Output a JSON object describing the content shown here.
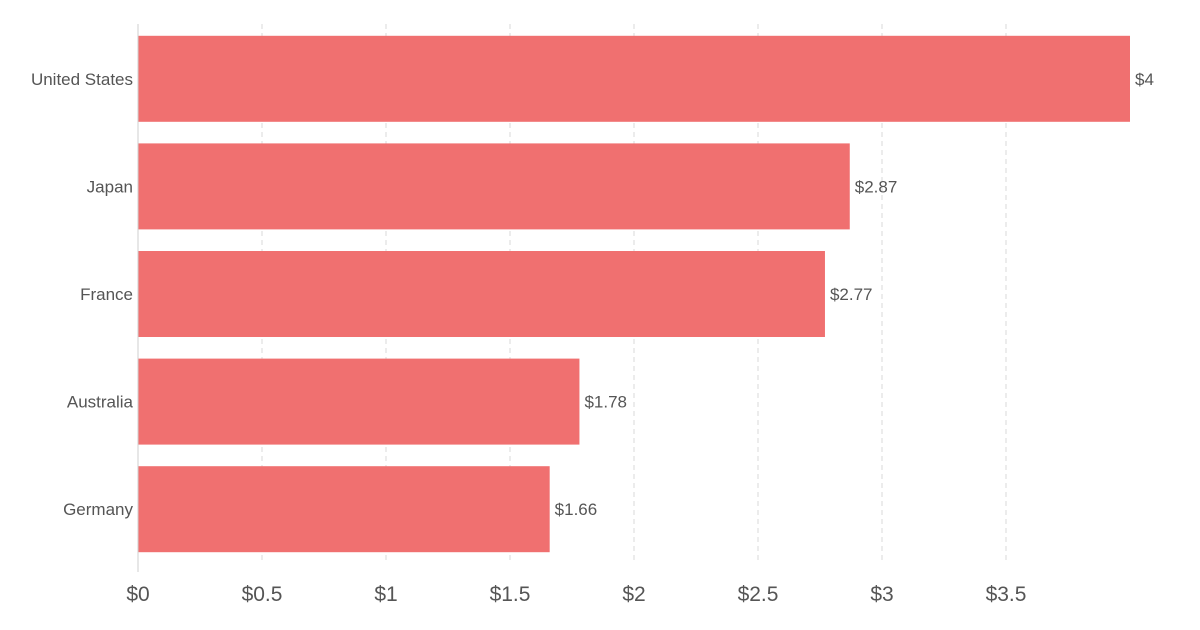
{
  "chart_data": {
    "type": "bar",
    "orientation": "horizontal",
    "categories": [
      "United States",
      "Japan",
      "France",
      "Australia",
      "Germany"
    ],
    "values": [
      4,
      2.87,
      2.77,
      1.78,
      1.66
    ],
    "value_labels": [
      "$4",
      "$2.87",
      "$2.77",
      "$1.78",
      "$1.66"
    ],
    "x_ticks": [
      0,
      0.5,
      1,
      1.5,
      2,
      2.5,
      3,
      3.5
    ],
    "x_tick_labels": [
      "$0",
      "$0.5",
      "$1",
      "$1.5",
      "$2",
      "$2.5",
      "$3",
      "$3.5"
    ],
    "xlim": [
      0,
      4
    ],
    "title": "",
    "xlabel": "",
    "ylabel": "",
    "grid": "vertical dashed",
    "legend": "none",
    "bar_color": "#f07070"
  }
}
